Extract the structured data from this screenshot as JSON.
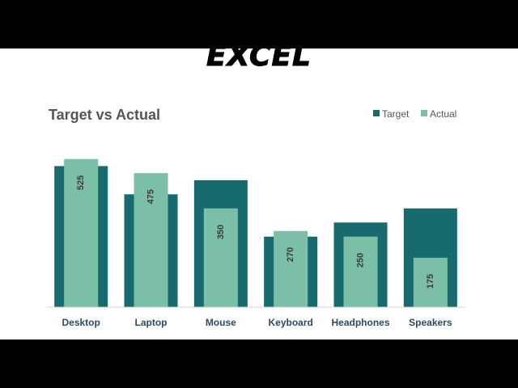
{
  "banner_title": "OVERLAPPING BAR CHART IN EXCEL",
  "colors": {
    "target": "#176a6e",
    "actual": "#7bbfa9",
    "axis": "#d0d0d0",
    "text": "#3a3a3a",
    "label": "#2c4a66"
  },
  "chart_data": {
    "type": "bar",
    "title": "Target vs Actual",
    "categories": [
      "Desktop",
      "Laptop",
      "Mouse",
      "Keyboard",
      "Headphones",
      "Speakers"
    ],
    "series": [
      {
        "name": "Target",
        "values": [
          500,
          400,
          450,
          250,
          300,
          350
        ]
      },
      {
        "name": "Actual",
        "values": [
          525,
          475,
          350,
          270,
          250,
          175
        ]
      }
    ],
    "data_labels": [
      "525",
      "475",
      "350",
      "270",
      "250",
      "175"
    ],
    "ylim": [
      0,
      550
    ],
    "grid": false,
    "legend": "top-right",
    "xlabel": "",
    "ylabel": ""
  }
}
